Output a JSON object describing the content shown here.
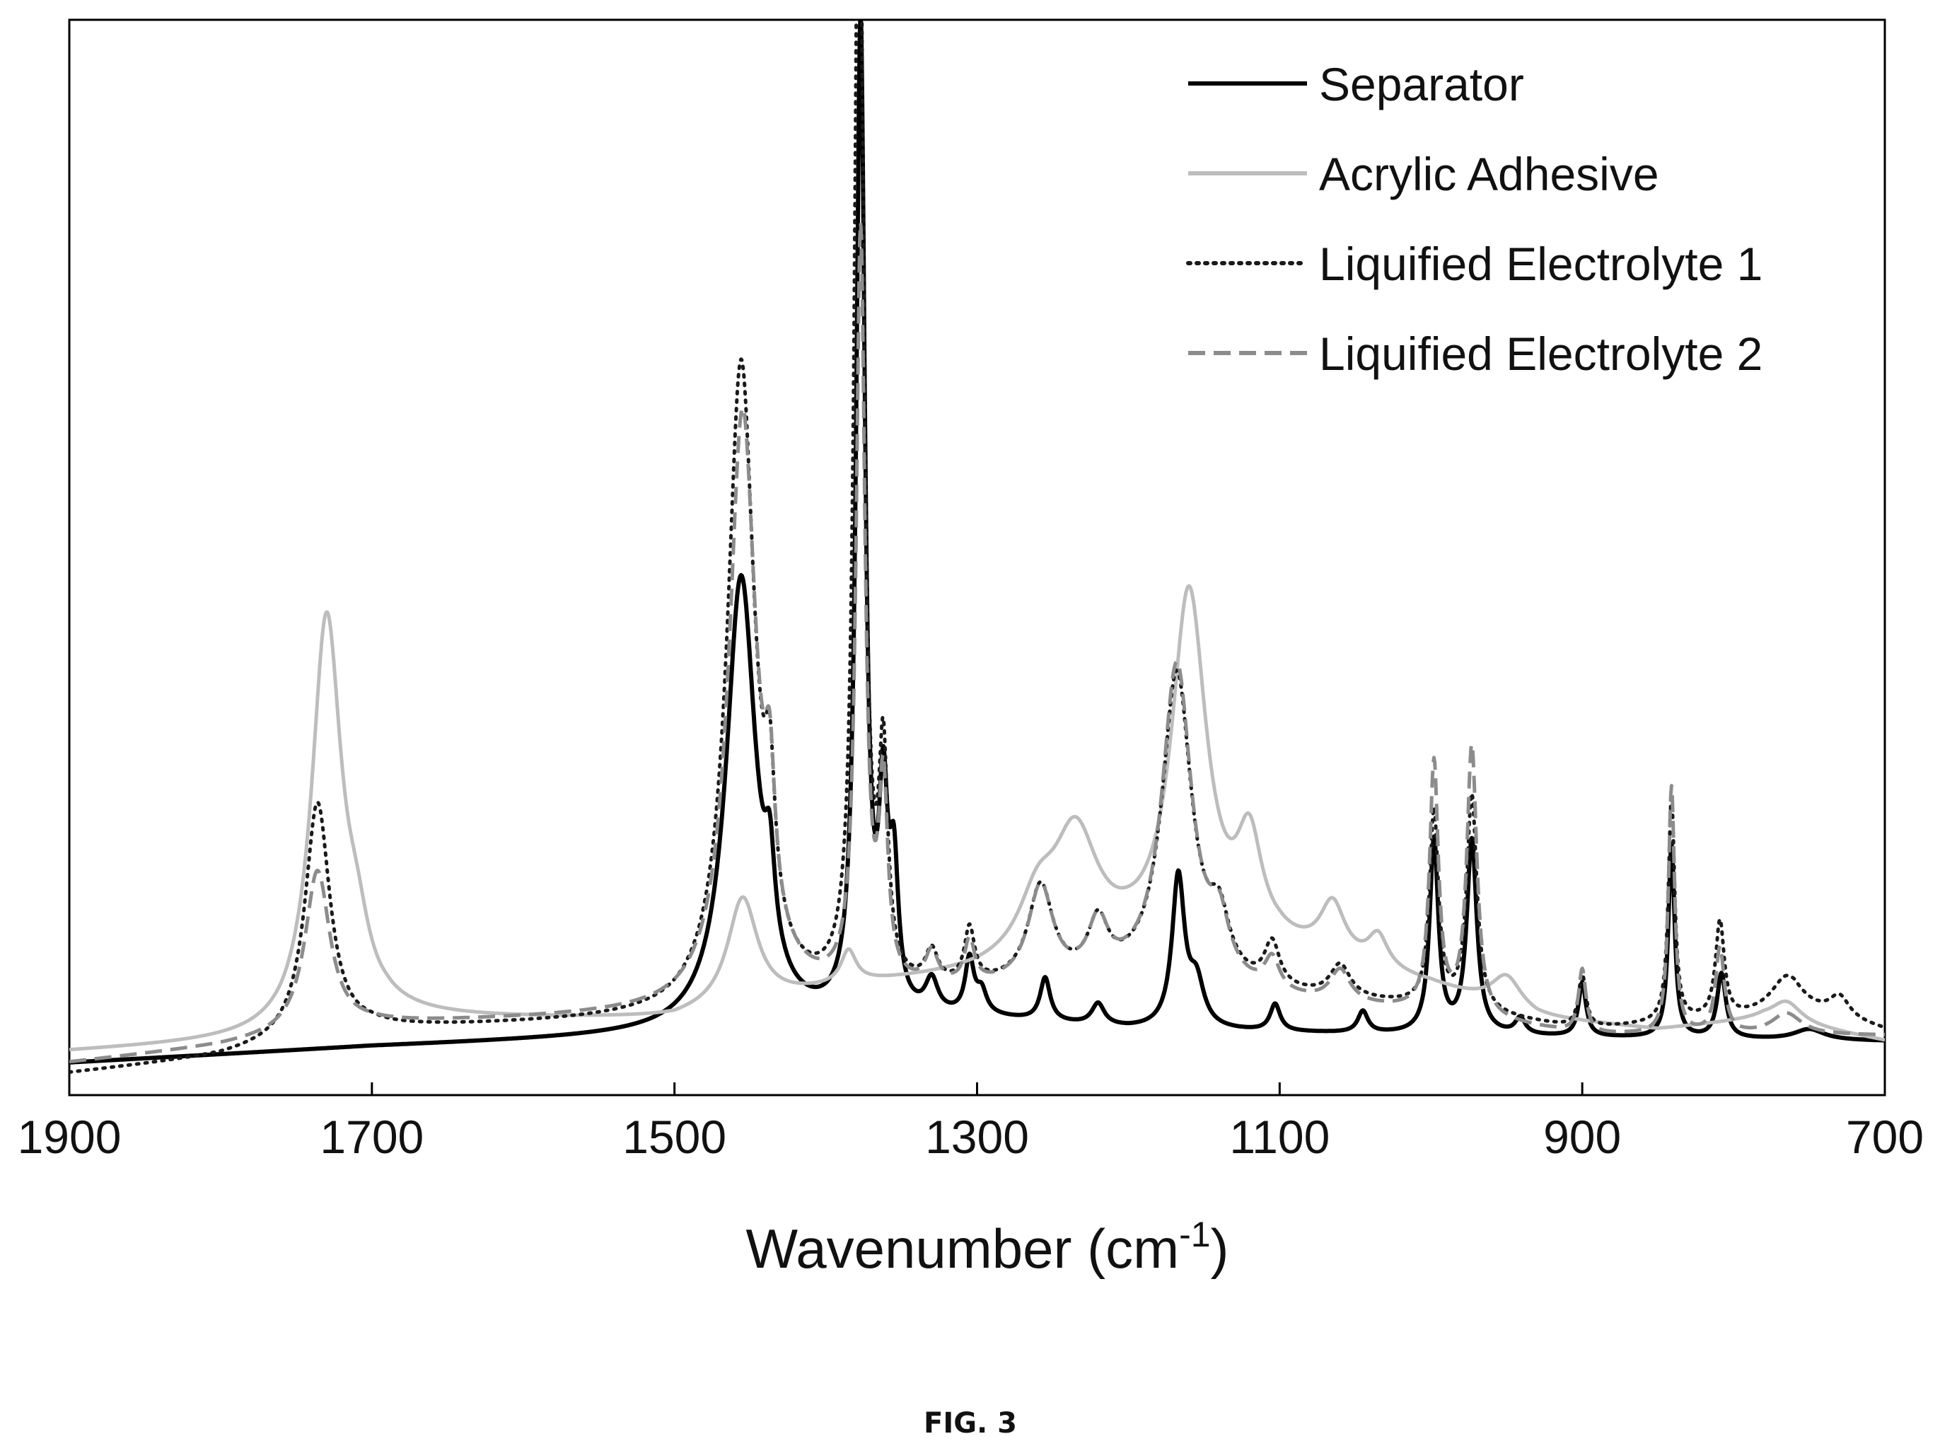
{
  "caption": "FIG. 3",
  "chart_data": {
    "type": "line",
    "xlabel": "Wavenumber (cm",
    "xlabel_sup": "-1",
    "xlabel_close": ")",
    "xlim": [
      1900,
      700
    ],
    "ylim": [
      0,
      100
    ],
    "x_ticks": [
      1900,
      1700,
      1500,
      1300,
      1100,
      900,
      700
    ],
    "x_tick_labels": [
      "1900",
      "1700",
      "1500",
      "1300",
      "1100",
      "900",
      "700"
    ],
    "y_axis_labeled": false,
    "grid": false,
    "legend_position": "top-right",
    "series": [
      {
        "name": "Separator",
        "color": "#000000",
        "style": "solid",
        "baseline": [
          [
            1900,
            3
          ],
          [
            1700,
            4.5
          ],
          [
            1500,
            5.5
          ],
          [
            1420,
            6
          ],
          [
            1300,
            7
          ],
          [
            1200,
            6
          ],
          [
            1000,
            5.5
          ],
          [
            700,
            5
          ]
        ],
        "peaks": [
          [
            1456,
            42,
            12
          ],
          [
            1437,
            8,
            4
          ],
          [
            1377,
            92,
            3.5
          ],
          [
            1362,
            18,
            3.5
          ],
          [
            1355,
            12,
            3.5
          ],
          [
            1330,
            3,
            5
          ],
          [
            1305,
            5,
            3.5
          ],
          [
            1297,
            2,
            4
          ],
          [
            1255,
            4,
            4
          ],
          [
            1220,
            2,
            5
          ],
          [
            1167,
            14,
            5
          ],
          [
            1155,
            4,
            6
          ],
          [
            1103,
            2.5,
            4
          ],
          [
            1045,
            2,
            4
          ],
          [
            998,
            18,
            3.5
          ],
          [
            973,
            18,
            4
          ],
          [
            941,
            1.5,
            4
          ],
          [
            900,
            5,
            3
          ],
          [
            841,
            18,
            2.5
          ],
          [
            808,
            6,
            3.5
          ],
          [
            750,
            1,
            12
          ]
        ]
      },
      {
        "name": "Acrylic Adhesive",
        "color": "#bdbdbd",
        "style": "solid",
        "baseline": [
          [
            1900,
            4
          ],
          [
            1760,
            5
          ],
          [
            1690,
            7
          ],
          [
            1600,
            7
          ],
          [
            1500,
            7
          ],
          [
            1420,
            9
          ],
          [
            1380,
            10
          ],
          [
            1300,
            11
          ],
          [
            1200,
            13
          ],
          [
            1100,
            13
          ],
          [
            1000,
            10
          ],
          [
            930,
            7
          ],
          [
            850,
            6
          ],
          [
            780,
            7
          ],
          [
            700,
            5
          ]
        ],
        "peaks": [
          [
            1730,
            38,
            12
          ],
          [
            1710,
            5,
            10
          ],
          [
            1455,
            10,
            12
          ],
          [
            1385,
            3,
            6
          ],
          [
            1260,
            5,
            15
          ],
          [
            1235,
            11,
            18
          ],
          [
            1160,
            33,
            14
          ],
          [
            1120,
            9,
            10
          ],
          [
            1065,
            5,
            10
          ],
          [
            1035,
            3,
            8
          ],
          [
            950,
            3,
            12
          ],
          [
            765,
            2,
            12
          ]
        ]
      },
      {
        "name": "Liquified Electrolyte 1",
        "color": "#1a1a1a",
        "style": "dotted",
        "baseline": [
          [
            1900,
            2
          ],
          [
            1800,
            3.5
          ],
          [
            1700,
            6
          ],
          [
            1600,
            6.5
          ],
          [
            1500,
            7
          ],
          [
            1420,
            8
          ],
          [
            1300,
            9.5
          ],
          [
            1200,
            10
          ],
          [
            1100,
            9
          ],
          [
            1000,
            8
          ],
          [
            900,
            6
          ],
          [
            800,
            7
          ],
          [
            760,
            8
          ],
          [
            700,
            6
          ]
        ],
        "peaks": [
          [
            1736,
            22,
            10
          ],
          [
            1456,
            60,
            11
          ],
          [
            1437,
            12,
            4
          ],
          [
            1378,
            115,
            3.5
          ],
          [
            1362,
            20,
            3.5
          ],
          [
            1330,
            3,
            5
          ],
          [
            1305,
            5,
            4
          ],
          [
            1258,
            9,
            10
          ],
          [
            1220,
            5,
            8
          ],
          [
            1168,
            29,
            12
          ],
          [
            1140,
            5,
            8
          ],
          [
            1105,
            4,
            6
          ],
          [
            1060,
            3,
            8
          ],
          [
            998,
            18,
            3.5
          ],
          [
            973,
            20,
            4
          ],
          [
            900,
            5,
            3
          ],
          [
            841,
            21,
            2.5
          ],
          [
            809,
            9,
            3.5
          ],
          [
            765,
            3,
            12
          ],
          [
            730,
            2,
            8
          ]
        ]
      },
      {
        "name": "Liquified Electrolyte 2",
        "color": "#8c8c8c",
        "style": "dashed",
        "baseline": [
          [
            1900,
            3
          ],
          [
            1800,
            4.5
          ],
          [
            1700,
            6.5
          ],
          [
            1600,
            7
          ],
          [
            1500,
            7.5
          ],
          [
            1420,
            8.5
          ],
          [
            1300,
            9.5
          ],
          [
            1200,
            10
          ],
          [
            1100,
            8.5
          ],
          [
            1000,
            7.5
          ],
          [
            900,
            5.5
          ],
          [
            800,
            5.5
          ],
          [
            700,
            5.5
          ]
        ],
        "peaks": [
          [
            1736,
            15,
            10
          ],
          [
            1455,
            55,
            11
          ],
          [
            1437,
            12,
            4
          ],
          [
            1377,
            70,
            3.5
          ],
          [
            1362,
            18,
            3.5
          ],
          [
            1330,
            3,
            5
          ],
          [
            1305,
            4,
            4
          ],
          [
            1258,
            9,
            10
          ],
          [
            1220,
            5,
            8
          ],
          [
            1168,
            30,
            12
          ],
          [
            1140,
            5,
            8
          ],
          [
            1105,
            3,
            6
          ],
          [
            1060,
            3,
            8
          ],
          [
            998,
            23,
            3.5
          ],
          [
            973,
            25,
            4
          ],
          [
            900,
            6,
            3
          ],
          [
            841,
            23,
            2.5
          ],
          [
            809,
            8,
            3.5
          ],
          [
            765,
            2,
            12
          ]
        ]
      }
    ]
  }
}
